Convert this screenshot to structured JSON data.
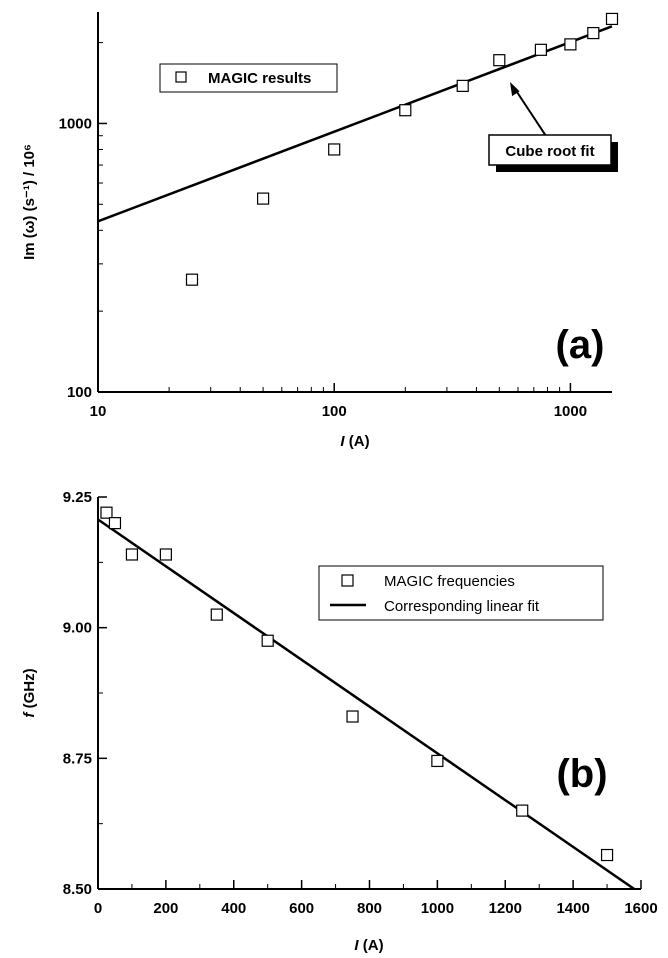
{
  "chart_data": [
    {
      "type": "scatter",
      "panel_label": "(a)",
      "x_scale": "log",
      "y_scale": "log",
      "xlim": [
        10,
        1500
      ],
      "ylim": [
        100,
        2600
      ],
      "x_ticks": [
        10,
        100,
        1000
      ],
      "y_ticks": [
        100,
        1000
      ],
      "x_tick_labels": [
        "10",
        "100",
        "1000"
      ],
      "y_tick_labels": [
        "100",
        "1000"
      ],
      "xlabel": {
        "italic": "I",
        "rest": " (A)"
      },
      "ylabel": "Im (ω) (s⁻¹) / 10⁶",
      "series": [
        {
          "name": "MAGIC results",
          "marker": "open-square",
          "x": [
            25,
            50,
            100,
            200,
            350,
            500,
            750,
            1000,
            1250,
            1500
          ],
          "y": [
            262,
            525,
            800,
            1120,
            1380,
            1720,
            1880,
            1970,
            2170,
            2450
          ]
        },
        {
          "name": "Cube root fit",
          "kind": "line",
          "x": [
            10,
            1500
          ],
          "y": [
            432,
            2300
          ]
        }
      ],
      "annotation": "Cube root fit",
      "legend": {
        "position": "top-left",
        "entries": [
          "MAGIC results"
        ]
      }
    },
    {
      "type": "scatter",
      "panel_label": "(b)",
      "xlim": [
        0,
        1600
      ],
      "ylim": [
        8.5,
        9.25
      ],
      "x_ticks": [
        0,
        200,
        400,
        600,
        800,
        1000,
        1200,
        1400,
        1600
      ],
      "y_ticks": [
        8.5,
        8.75,
        9.0,
        9.25
      ],
      "x_tick_labels": [
        "0",
        "200",
        "400",
        "600",
        "800",
        "1000",
        "1200",
        "1400",
        "1600"
      ],
      "y_tick_labels": [
        "8.50",
        "8.75",
        "9.00",
        "9.25"
      ],
      "xlabel": {
        "italic": "I",
        "rest": " (A)"
      },
      "ylabel": {
        "italic": "f",
        "rest": " (GHz)"
      },
      "series": [
        {
          "name": "MAGIC frequencies",
          "marker": "open-square",
          "x": [
            25,
            50,
            100,
            200,
            350,
            500,
            750,
            1000,
            1250,
            1500
          ],
          "y": [
            9.22,
            9.2,
            9.14,
            9.14,
            9.025,
            8.975,
            8.83,
            8.745,
            8.65,
            8.565
          ]
        },
        {
          "name": "Corresponding linear fit",
          "kind": "line",
          "x": [
            0,
            1580
          ],
          "y": [
            9.207,
            8.5
          ]
        }
      ],
      "legend": {
        "position": "top-right",
        "entries": [
          "MAGIC frequencies",
          "Corresponding linear fit"
        ]
      }
    }
  ]
}
